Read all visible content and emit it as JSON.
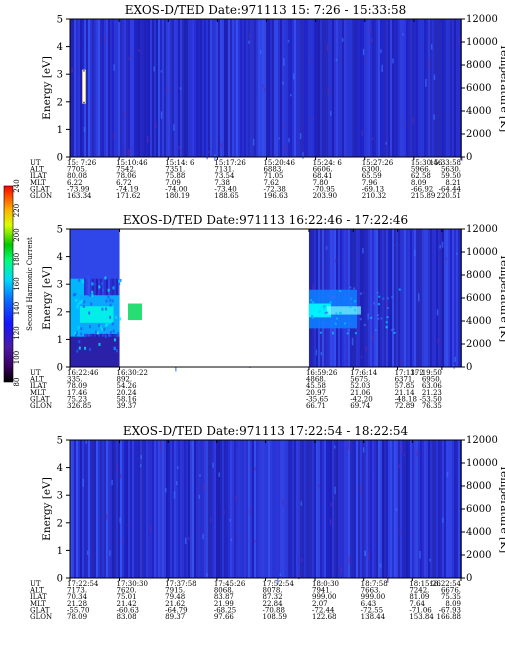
{
  "chart_data": [
    {
      "type": "heatmap",
      "title": "EXOS-D/TED   Date:971113  15: 7:26 - 15:33:58",
      "ylabel": "Energy [eV]",
      "y2label": "Temperature [K]",
      "ylim": [
        0,
        5
      ],
      "y2lim": [
        0,
        12000
      ],
      "yticks": [
        "0",
        "1",
        "2",
        "3",
        "4",
        "5"
      ],
      "y2ticks": [
        "0",
        "2000",
        "4000",
        "6000",
        "8000",
        "10000",
        "12000"
      ],
      "data_gap": null,
      "ephemeris": {
        "labels": [
          "UT",
          "ALT",
          "ILAT",
          "MLT",
          "GLAT",
          "GLON"
        ],
        "columns": [
          [
            "15: 7:26",
            "7705.",
            "80.08",
            "6.22",
            "-73.99",
            "163.34"
          ],
          [
            "15:10:46",
            "7542.",
            "78.06",
            "6.72",
            "-74.19",
            "171.62"
          ],
          [
            "15:14: 6",
            "7351.",
            "75.88",
            "7.09",
            "-74.00",
            "180.19"
          ],
          [
            "15:17:26",
            "7131.",
            "73.54",
            "7.38",
            "-73.40",
            "188.65"
          ],
          [
            "15:20:46",
            "6883.",
            "71.05",
            "7.62",
            "-72.38",
            "196.63"
          ],
          [
            "15:24: 6",
            "6606.",
            "68.41",
            "7.80",
            "-70.95",
            "203.90"
          ],
          [
            "15:27:26",
            "6300.",
            "65.59",
            "7.96",
            "-69.13",
            "210.32"
          ],
          [
            "15:30:46",
            "5966.",
            "62.58",
            "8.09",
            "-66.92",
            "215.89"
          ],
          [
            "15:33:58",
            "5630.",
            "59.50",
            "8.21",
            "-64.44",
            "220.51"
          ]
        ]
      }
    },
    {
      "type": "heatmap",
      "title": "EXOS-D/TED   Date:971113  16:22:46 - 17:22:46",
      "ylabel": "Energy [eV]",
      "y2label": "Temperature [K]",
      "ylim": [
        0,
        5
      ],
      "y2lim": [
        0,
        12000
      ],
      "yticks": [
        "0",
        "1",
        "2",
        "3",
        "4",
        "5"
      ],
      "y2ticks": [
        "0",
        "2000",
        "4000",
        "6000",
        "8000",
        "10000",
        "12000"
      ],
      "data_gap": "16:30:22 - 16:59:26",
      "ephemeris": {
        "labels": [
          "UT",
          "ALT",
          "ILAT",
          "MLT",
          "GLAT",
          "GLON"
        ],
        "columns": [
          [
            "16:22:46",
            "335.",
            "78.09",
            "17.46",
            "75.23",
            "326.85"
          ],
          [
            "16:30:22",
            "892.",
            "54.26",
            "20.24",
            "58.16",
            "39.37"
          ],
          [
            "16:59:26",
            "4868.",
            "45.58",
            "20.97",
            "-35.65",
            "66.71"
          ],
          [
            "17:6:14",
            "5675.",
            "52.03",
            "21.06",
            "-42.20",
            "69.74"
          ],
          [
            "17:13: 2",
            "6371.",
            "57.85",
            "21.14",
            "-48.18",
            "72.89"
          ],
          [
            "17:19:50",
            "6950.",
            "63.06",
            "21.23",
            "-53.50",
            "76.35"
          ]
        ]
      },
      "colorbar": {
        "label": "Second Harmonic Current",
        "ticks": [
          "80",
          "100",
          "120",
          "140",
          "160",
          "180",
          "200",
          "220",
          "240"
        ],
        "range": [
          80,
          240
        ]
      }
    },
    {
      "type": "heatmap",
      "title": "EXOS-D/TED   Date:971113  17:22:54 - 18:22:54",
      "ylabel": "Energy [eV]",
      "y2label": "Temperature [K]",
      "ylim": [
        0,
        5
      ],
      "y2lim": [
        0,
        12000
      ],
      "yticks": [
        "0",
        "1",
        "2",
        "3",
        "4",
        "5"
      ],
      "y2ticks": [
        "0",
        "2000",
        "4000",
        "6000",
        "8000",
        "10000",
        "12000"
      ],
      "data_gap": null,
      "ephemeris": {
        "labels": [
          "UT",
          "ALT",
          "ILAT",
          "MLT",
          "GLAT",
          "GLON"
        ],
        "columns": [
          [
            "17:22:54",
            "7173.",
            "70.34",
            "21.28",
            "-55.70",
            "78.09"
          ],
          [
            "17:30:30",
            "7620.",
            "75.01",
            "21.42",
            "-60.63",
            "83.08"
          ],
          [
            "17:37:58",
            "7915.",
            "79.48",
            "21.62",
            "-64.79",
            "89.37"
          ],
          [
            "17:45:26",
            "8068.",
            "83.87",
            "21.99",
            "-68.25",
            "97.66"
          ],
          [
            "17:52:54",
            "8078.",
            "87.32",
            "22.84",
            "-70.88",
            "108.59"
          ],
          [
            "18:0:30",
            "7941.",
            "999.00",
            "2.07",
            "-72.44",
            "122.68"
          ],
          [
            "18:7:58",
            "7663.",
            "999.00",
            "6.43",
            "-72.55",
            "138.44"
          ],
          [
            "18:15:26",
            "7242.",
            "81.09",
            "7.64",
            "-71.06",
            "153.84"
          ],
          [
            "18:22:54",
            "6676.",
            "75.35",
            "8.09",
            "-67.93",
            "166.88"
          ]
        ]
      }
    }
  ]
}
